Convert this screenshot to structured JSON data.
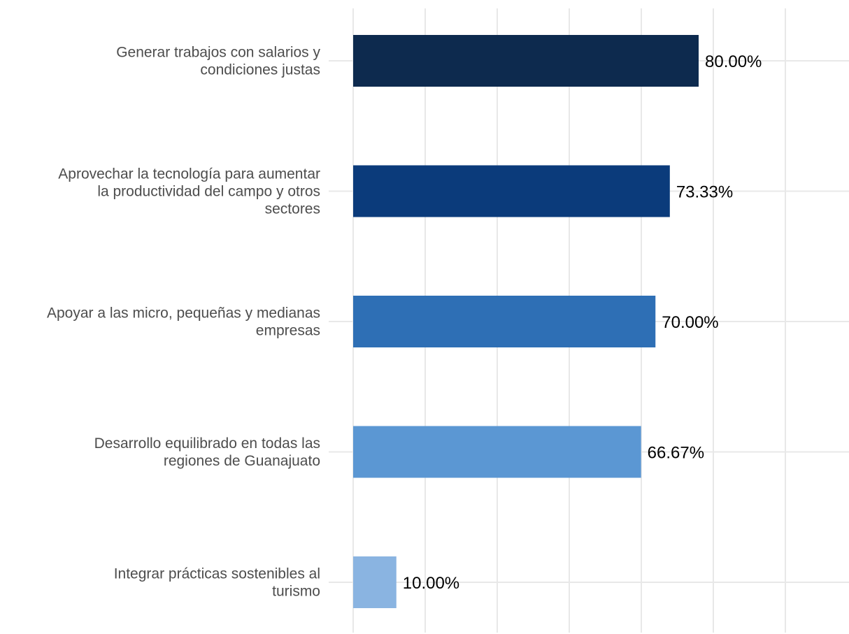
{
  "chart_data": {
    "type": "bar",
    "orientation": "horizontal",
    "title": "",
    "xlabel": "",
    "ylabel": "",
    "xlim": [
      0,
      100
    ],
    "grid": true,
    "categories": [
      [
        "Generar trabajos con salarios y",
        "condiciones justas"
      ],
      [
        "Aprovechar la tecnología para aumentar",
        "la productividad del campo y otros",
        "sectores"
      ],
      [
        "Apoyar a las micro, pequeñas y medianas",
        "empresas"
      ],
      [
        "Desarrollo equilibrado en todas las",
        "regiones de Guanajuato"
      ],
      [
        "Integrar prácticas sostenibles al",
        "turismo"
      ]
    ],
    "values": [
      80.0,
      73.33,
      70.0,
      66.67,
      10.0
    ],
    "value_labels": [
      "80.00%",
      "73.33%",
      "70.00%",
      "66.67%",
      "10.00%"
    ],
    "colors": [
      "#0d2a4e",
      "#0b3b7b",
      "#2e6fb5",
      "#5b97d3",
      "#8ab4e1"
    ]
  }
}
